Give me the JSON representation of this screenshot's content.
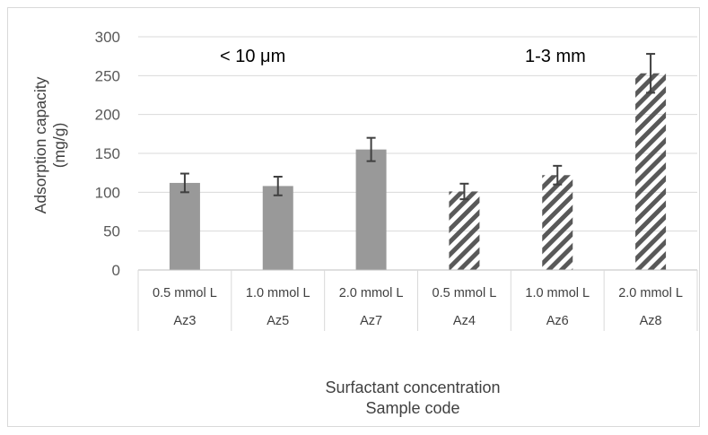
{
  "chart_data": {
    "type": "bar",
    "title": "",
    "ylabel": "Adsorption capacity (mg/g)",
    "ylabel_lines": [
      "Adsorption capacity",
      "(mg/g)"
    ],
    "xlabel_lines": [
      "Surfactant concentration",
      "Sample code"
    ],
    "ylim": [
      0,
      300
    ],
    "yticks": [
      0,
      50,
      100,
      150,
      200,
      250,
      300
    ],
    "grid": true,
    "categories": [
      "0.5 mmol L",
      "1.0 mmol L",
      "2.0 mmol L",
      "0.5 mmol L",
      "1.0 mmol L",
      "2.0 mmol L"
    ],
    "sample_codes": [
      "Az3",
      "Az5",
      "Az7",
      "Az4",
      "Az6",
      "Az8"
    ],
    "values": [
      112,
      108,
      155,
      101,
      122,
      253
    ],
    "errors": [
      12,
      12,
      15,
      10,
      12,
      25
    ],
    "fill_style": [
      "solid",
      "solid",
      "solid",
      "hatched",
      "hatched",
      "hatched"
    ],
    "annotations": [
      "< 10 μm",
      "1-3 mm"
    ],
    "colors": {
      "bar": "#999999",
      "hatch": "#595959",
      "grid": "#d9d9d9",
      "error": "#404040"
    }
  }
}
